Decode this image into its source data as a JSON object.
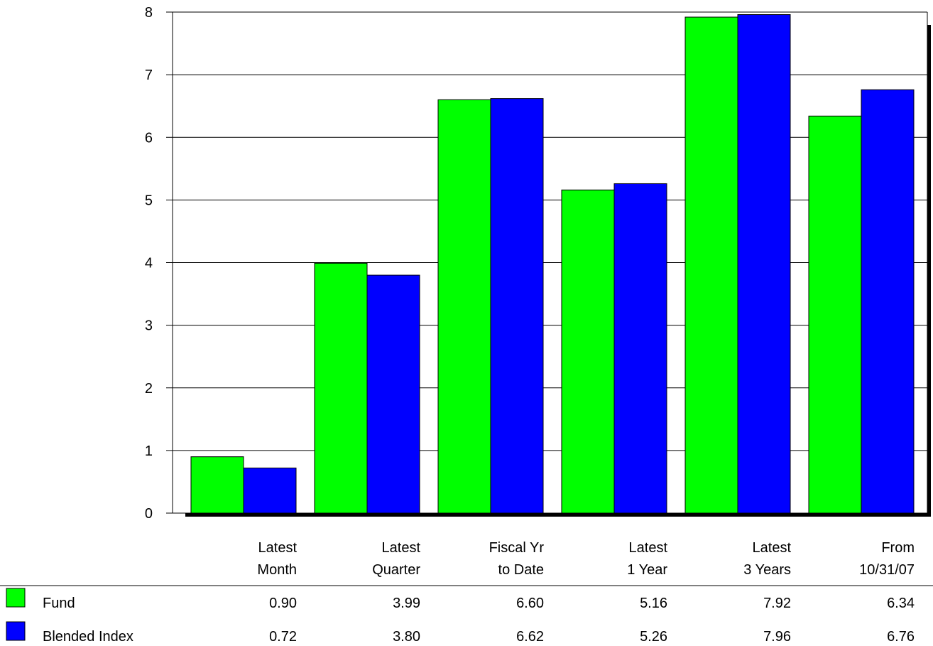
{
  "chart_data": {
    "type": "bar",
    "categories": [
      [
        "Latest",
        "Month"
      ],
      [
        "Latest",
        "Quarter"
      ],
      [
        "Fiscal Yr",
        "to Date"
      ],
      [
        "Latest",
        "1 Year"
      ],
      [
        "Latest",
        "3 Years"
      ],
      [
        "From",
        "10/31/07"
      ]
    ],
    "series": [
      {
        "name": "Fund",
        "color": "#00ff00",
        "values": [
          0.9,
          3.99,
          6.6,
          5.16,
          7.92,
          6.34
        ],
        "labels": [
          "0.90",
          "3.99",
          "6.60",
          "5.16",
          "7.92",
          "6.34"
        ]
      },
      {
        "name": "Blended Index",
        "color": "#0000ff",
        "values": [
          0.72,
          3.8,
          6.62,
          5.26,
          7.96,
          6.76
        ],
        "labels": [
          "0.72",
          "3.80",
          "6.62",
          "5.26",
          "7.96",
          "6.76"
        ]
      }
    ],
    "yticks": [
      "0",
      "1",
      "2",
      "3",
      "4",
      "5",
      "6",
      "7",
      "8"
    ],
    "ylim": [
      0,
      8
    ],
    "grid": true,
    "legend": "bottom-left table"
  }
}
